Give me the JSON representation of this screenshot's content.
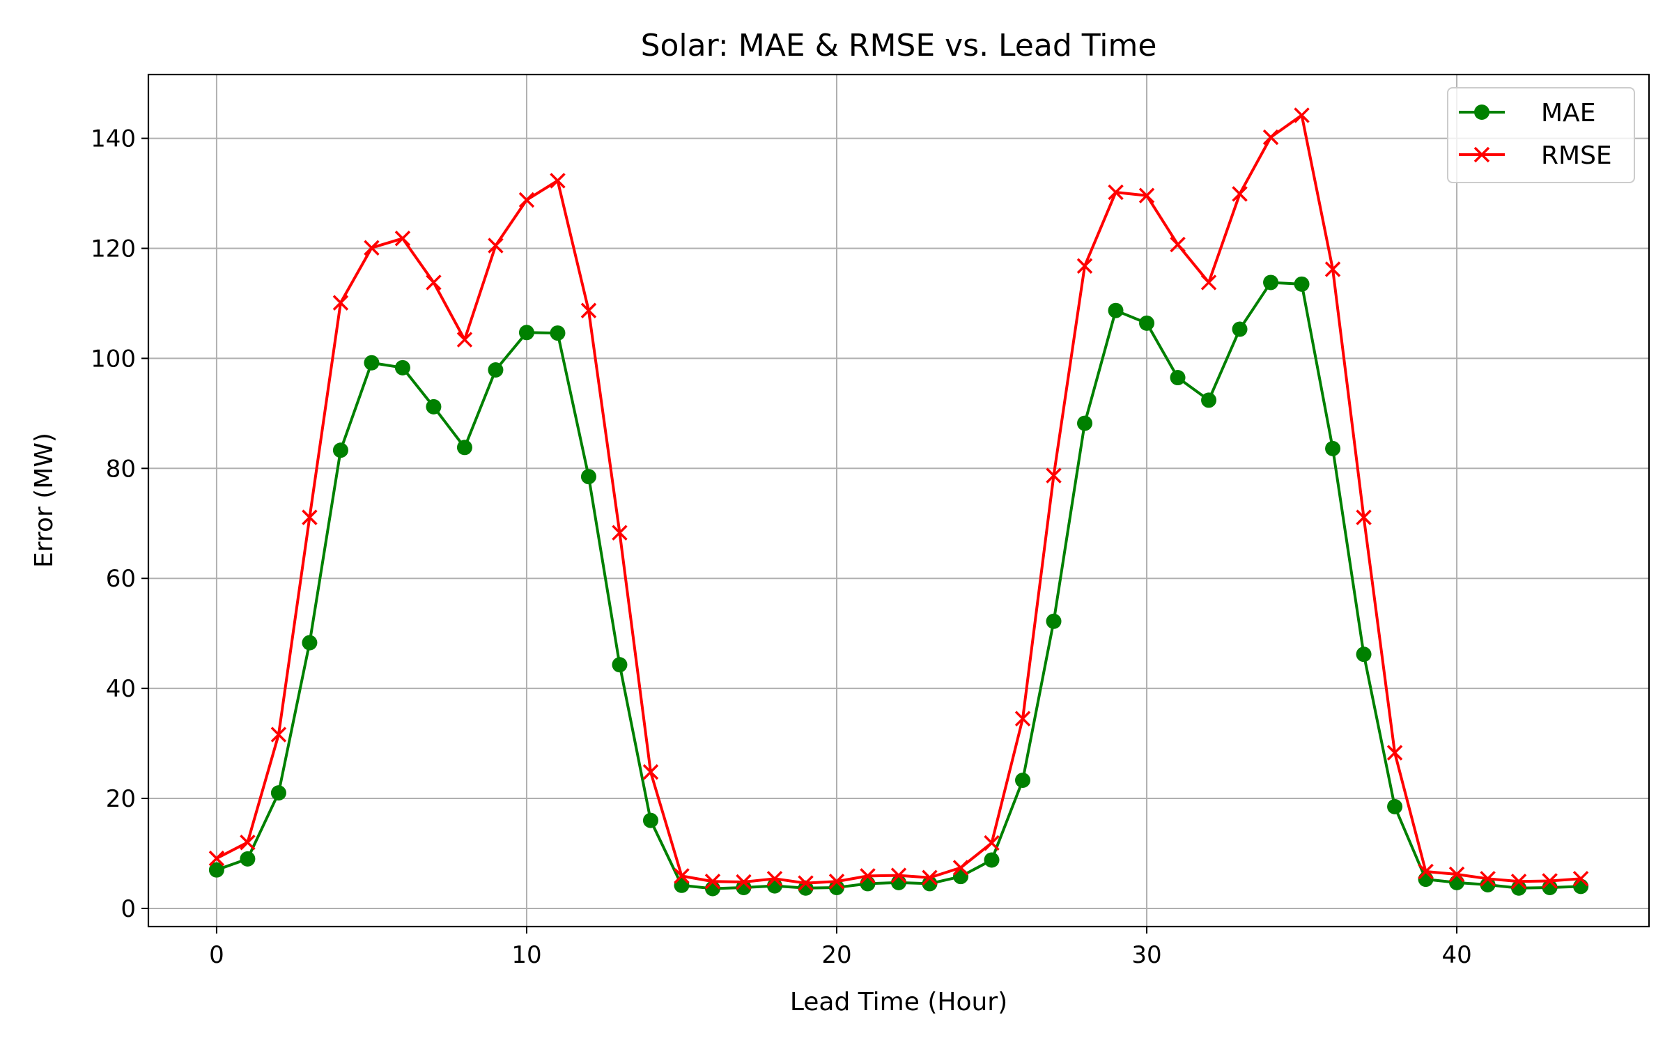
{
  "chart_data": {
    "type": "line",
    "title": "Solar: MAE & RMSE vs. Lead Time",
    "xlabel": "Lead Time (Hour)",
    "ylabel": "Error (MW)",
    "xlim": [
      -2.2,
      46.2
    ],
    "ylim": [
      -3.3,
      151.6
    ],
    "x_ticks": [
      0,
      10,
      20,
      30,
      40
    ],
    "y_ticks": [
      0,
      20,
      40,
      60,
      80,
      100,
      120,
      140
    ],
    "grid": true,
    "legend_position": "top-right",
    "x": [
      0,
      1,
      2,
      3,
      4,
      5,
      6,
      7,
      8,
      9,
      10,
      11,
      12,
      13,
      14,
      15,
      16,
      17,
      18,
      19,
      20,
      21,
      22,
      23,
      24,
      25,
      26,
      27,
      28,
      29,
      30,
      31,
      32,
      33,
      34,
      35,
      36,
      37,
      38,
      39,
      40,
      41,
      42,
      43,
      44
    ],
    "series": [
      {
        "name": "MAE",
        "color": "#008000",
        "marker": "circle",
        "values": [
          7,
          9,
          21,
          48.3,
          83.3,
          99.2,
          98.3,
          91.2,
          83.8,
          97.9,
          104.7,
          104.6,
          78.5,
          44.3,
          16,
          4.2,
          3.6,
          3.8,
          4.1,
          3.7,
          3.8,
          4.5,
          4.7,
          4.5,
          5.8,
          8.8,
          23.3,
          52.2,
          88.2,
          108.7,
          106.4,
          96.5,
          92.4,
          105.3,
          113.8,
          113.5,
          83.6,
          46.2,
          18.5,
          5.3,
          4.7,
          4.3,
          3.7,
          3.8,
          4
        ]
      },
      {
        "name": "RMSE",
        "color": "#ff0000",
        "marker": "x",
        "values": [
          9.1,
          12,
          31.6,
          71.1,
          110.1,
          120.1,
          121.8,
          113.8,
          103.4,
          120.5,
          128.8,
          132.3,
          108.7,
          68.3,
          24.8,
          5.9,
          4.9,
          4.8,
          5.4,
          4.6,
          4.9,
          5.9,
          6,
          5.6,
          7.4,
          11.9,
          34.5,
          78.7,
          116.8,
          130.2,
          129.6,
          120.7,
          113.8,
          129.9,
          140.2,
          144.2,
          116.2,
          71.1,
          28.3,
          6.7,
          6.2,
          5.4,
          4.9,
          5,
          5.4
        ]
      }
    ]
  }
}
